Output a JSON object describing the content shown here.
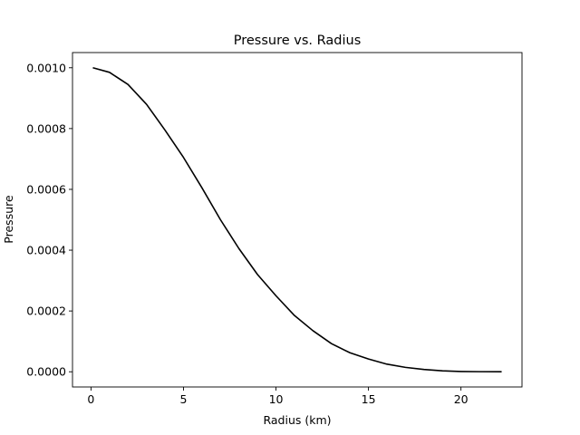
{
  "chart_data": {
    "type": "line",
    "title": "Pressure vs. Radius",
    "xlabel": "Radius (km)",
    "ylabel": "Pressure",
    "xlim": [
      -1.0,
      23.3
    ],
    "ylim": [
      -5e-05,
      0.00105
    ],
    "xticks": [
      0,
      5,
      10,
      15,
      20
    ],
    "xtick_labels": [
      "0",
      "5",
      "10",
      "15",
      "20"
    ],
    "yticks": [
      0.0,
      0.0002,
      0.0004,
      0.0006,
      0.0008,
      0.001
    ],
    "ytick_labels": [
      "0.0000",
      "0.0002",
      "0.0004",
      "0.0006",
      "0.0008",
      "0.0010"
    ],
    "grid": false,
    "legend": "none",
    "series": [
      {
        "color": "#000000",
        "x": [
          0.1,
          1,
          2,
          3,
          4,
          5,
          6,
          7,
          8,
          9,
          10,
          11,
          12,
          13,
          14,
          15,
          16,
          17,
          18,
          19,
          20,
          21,
          22.2
        ],
        "y": [
          0.001,
          0.000985,
          0.000945,
          0.00088,
          0.000795,
          0.000705,
          0.000605,
          0.0005,
          0.000405,
          0.00032,
          0.00025,
          0.000185,
          0.000135,
          9.25e-05,
          6.25e-05,
          4.2e-05,
          2.5e-05,
          1.45e-05,
          7.5e-06,
          3e-06,
          1e-06,
          3e-07,
          1e-07
        ]
      }
    ]
  }
}
